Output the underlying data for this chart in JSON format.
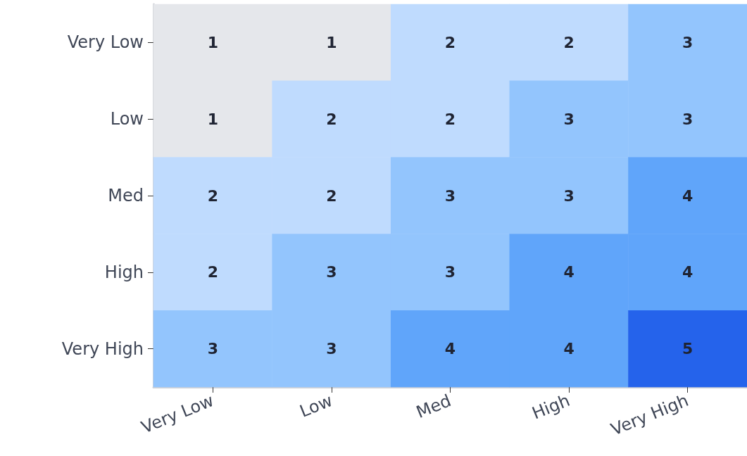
{
  "chart_data": {
    "type": "heatmap",
    "categories": [
      "Very Low",
      "Low",
      "Med",
      "High",
      "Very High"
    ],
    "y_categories": [
      "Very Low",
      "Low",
      "Med",
      "High",
      "Very High"
    ],
    "cells": [
      [
        1,
        1,
        2,
        2,
        3
      ],
      [
        1,
        2,
        2,
        3,
        3
      ],
      [
        2,
        2,
        3,
        3,
        4
      ],
      [
        2,
        3,
        3,
        4,
        4
      ],
      [
        3,
        3,
        4,
        4,
        5
      ]
    ],
    "colors": [
      [
        "#e5e7eb",
        "#e5e7eb",
        "#bfdbfe",
        "#bfdbfe",
        "#93c5fd"
      ],
      [
        "#e5e7eb",
        "#bfdbfe",
        "#bfdbfe",
        "#93c5fd",
        "#93c5fd"
      ],
      [
        "#bfdbfe",
        "#bfdbfe",
        "#93c5fd",
        "#93c5fd",
        "#60a5fa"
      ],
      [
        "#bfdbfe",
        "#93c5fd",
        "#93c5fd",
        "#60a5fa",
        "#60a5fa"
      ],
      [
        "#93c5fd",
        "#93c5fd",
        "#60a5fa",
        "#60a5fa",
        "#2563eb"
      ]
    ],
    "data_labels": true
  }
}
